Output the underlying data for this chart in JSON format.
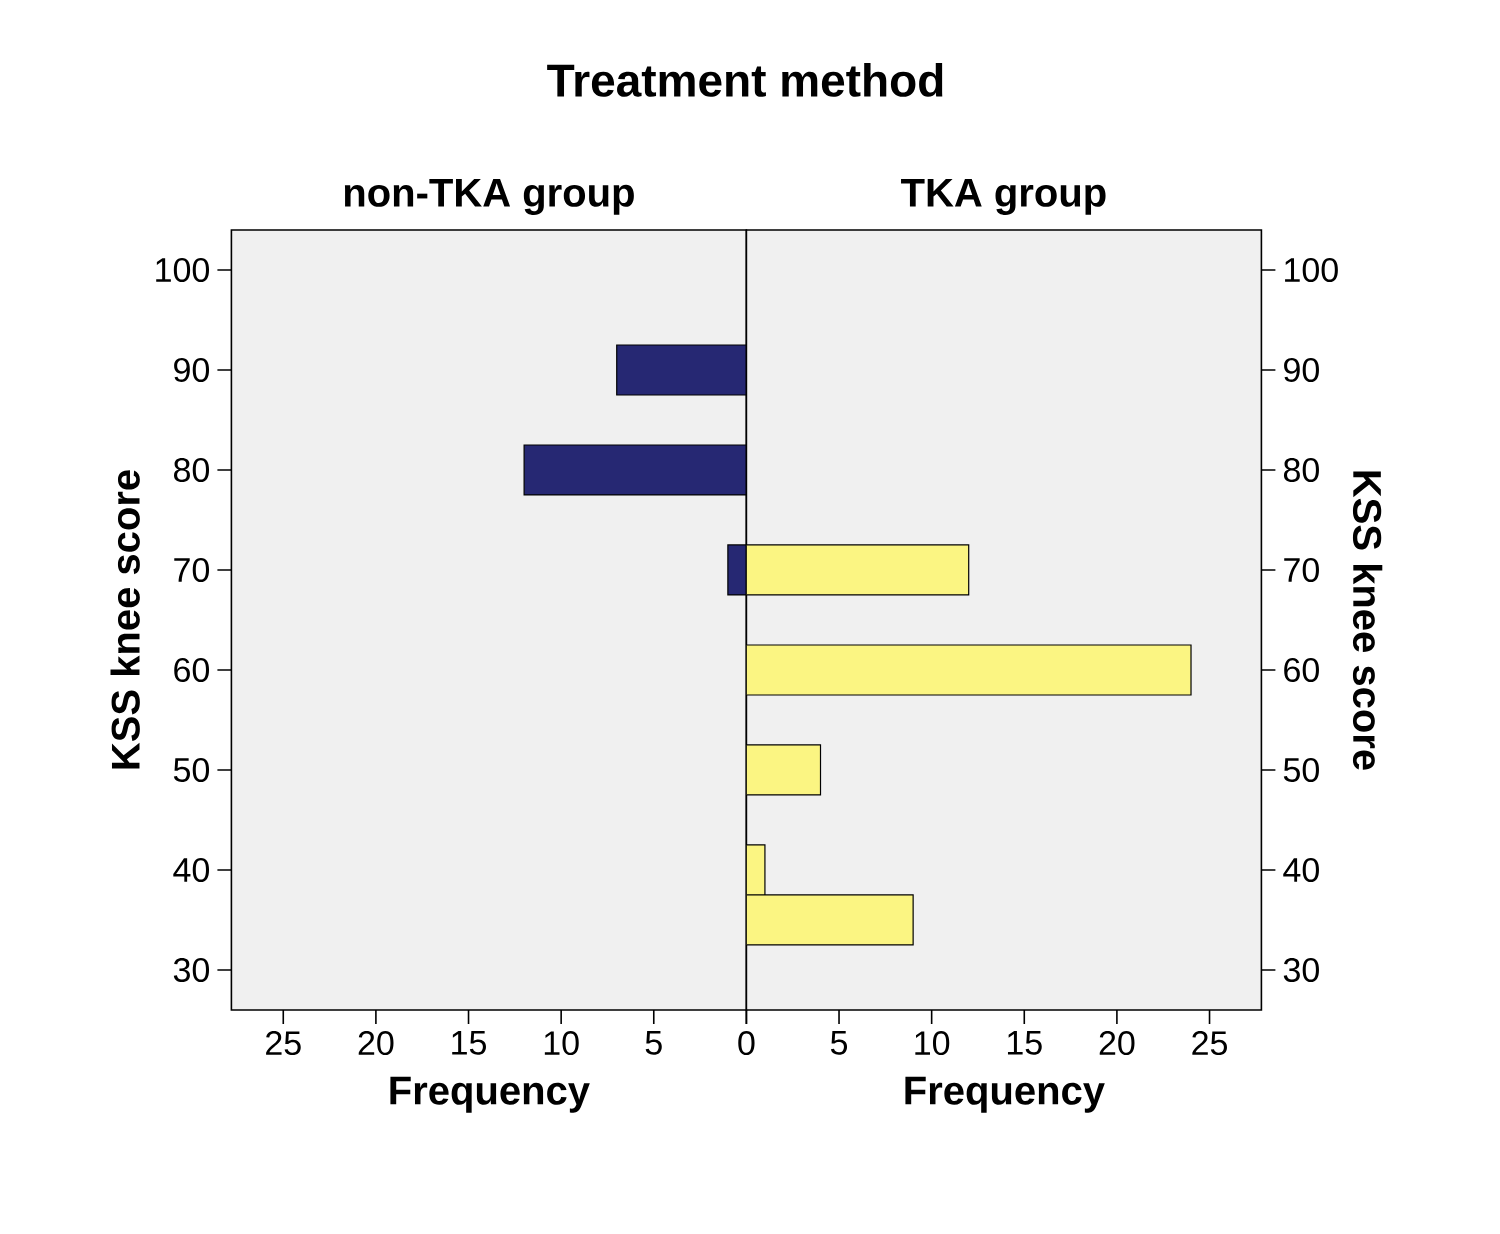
{
  "chart_data": [
    {
      "type": "bar",
      "orientation": "horizontal",
      "title": "Treatment method",
      "subtitle": "non-TKA group",
      "xlabel": "Frequency",
      "ylabel": "KSS knee score",
      "x": [
        90,
        80,
        70
      ],
      "values": [
        7,
        12,
        1
      ],
      "color": "#262873",
      "xlim": [
        27.8,
        0
      ],
      "xticks": [
        25,
        20,
        15,
        10,
        5,
        {
          "value": 0,
          "label": null
        }
      ],
      "ylim": [
        26,
        104
      ],
      "yticks": [
        30,
        40,
        50,
        60,
        70,
        80,
        90,
        100
      ]
    },
    {
      "type": "bar",
      "orientation": "horizontal",
      "subtitle": "TKA group",
      "xlabel": "Frequency",
      "ylabel": "KSS knee score",
      "x": [
        70,
        60,
        50,
        40,
        35
      ],
      "values": [
        12,
        24,
        4,
        1,
        9
      ],
      "color": "#fbf582",
      "xlim": [
        0,
        27.8
      ],
      "xticks": [
        0,
        5,
        10,
        15,
        20,
        25
      ],
      "ylim": [
        26,
        104
      ],
      "yticks": [
        30,
        40,
        50,
        60,
        70,
        80,
        90,
        100
      ]
    }
  ]
}
